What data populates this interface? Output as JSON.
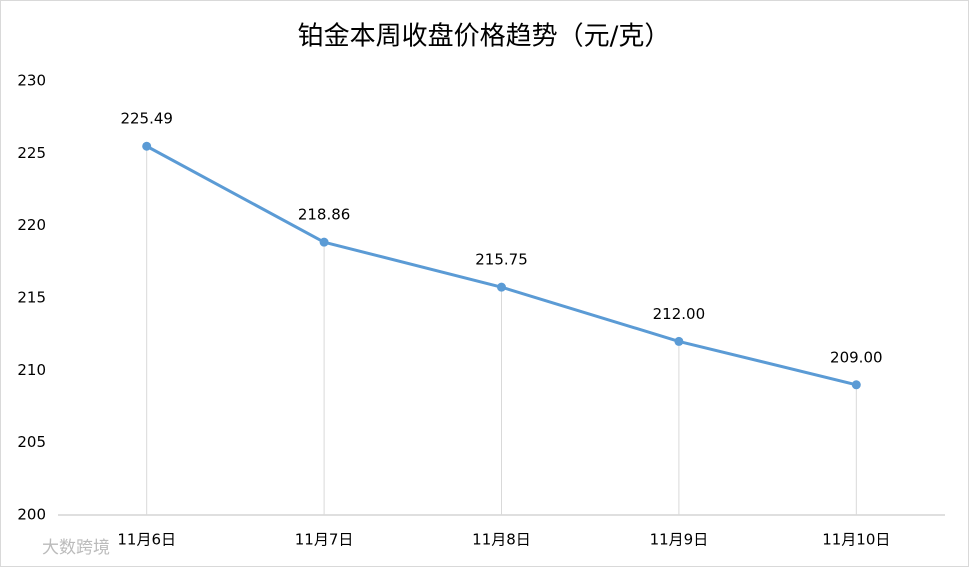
{
  "chart_data": {
    "type": "line",
    "title": "铂金本周收盘价格趋势（元/克）",
    "categories": [
      "11月6日",
      "11月7日",
      "11月8日",
      "11月9日",
      "11月10日"
    ],
    "values": [
      225.49,
      218.86,
      215.75,
      212.0,
      209.0
    ],
    "value_labels": [
      "225.49",
      "218.86",
      "215.75",
      "212.00",
      "209.00"
    ],
    "color": "#5b9bd5",
    "ylim": [
      200,
      230
    ],
    "yticks": [
      200,
      205,
      210,
      215,
      220,
      225,
      230
    ],
    "drop_lines": true,
    "watermark": "大数跨境"
  }
}
